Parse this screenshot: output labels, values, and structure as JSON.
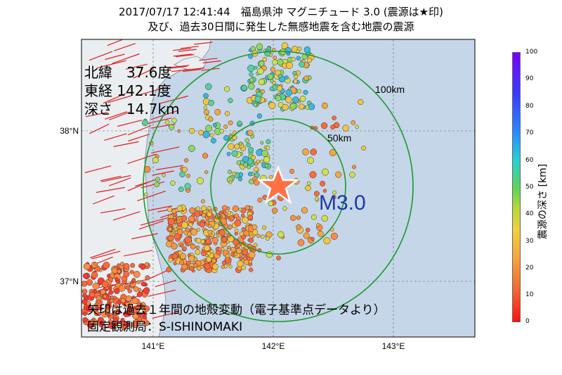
{
  "title_line1": "2017/07/17 12:41:44　福島県沖 マグニチュード 3.0 (震源は★印)",
  "title_line2": "及び、過去30日間に発生した無感地震を含む地震の震源",
  "info": {
    "lat": "北緯　37.6度",
    "lon": "東経 142.1度",
    "depth": "深さ　14.7km"
  },
  "magnitude_label": "M3.0",
  "rings": {
    "r50": "50km",
    "r100": "100km"
  },
  "axes": {
    "lat_labels": [
      "38°N",
      "37°N"
    ],
    "lon_labels": [
      "141°E",
      "142°E",
      "143°E"
    ]
  },
  "footer": {
    "line1": "矢印は過去１年間の地殻変動（電子基準点データより）",
    "line2": "固定観測局：S-ISHINOMAKI"
  },
  "colorbar": {
    "title": "震源の深さ [km]",
    "ticks": [
      "100",
      "90",
      "80",
      "70",
      "60",
      "50",
      "40",
      "30",
      "20",
      "10",
      "0"
    ]
  },
  "colors": {
    "ocean": "#c5d6e8",
    "land": "#e9eef2",
    "ring": "#1a9b2b",
    "star": "#ff7043",
    "mag_text": "#1f3aa6"
  }
}
